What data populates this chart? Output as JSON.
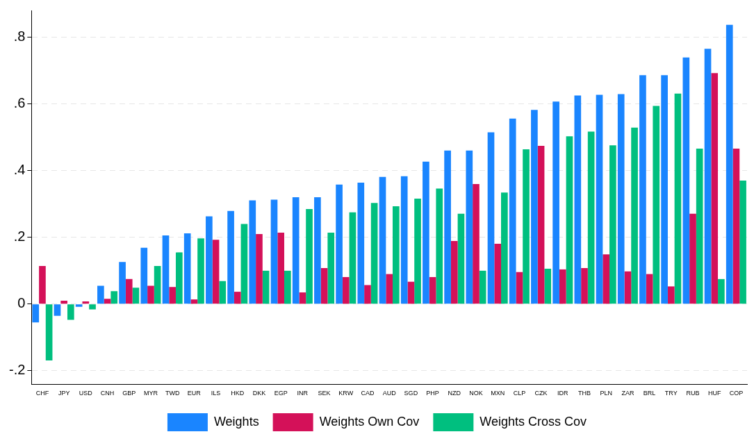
{
  "chart_data": {
    "type": "bar",
    "categories": [
      "CHF",
      "JPY",
      "USD",
      "CNH",
      "GBP",
      "MYR",
      "TWD",
      "EUR",
      "ILS",
      "HKD",
      "DKK",
      "EGP",
      "INR",
      "SEK",
      "KRW",
      "CAD",
      "AUD",
      "SGD",
      "PHP",
      "NZD",
      "NOK",
      "MXN",
      "CLP",
      "CZK",
      "IDR",
      "THB",
      "PLN",
      "ZAR",
      "BRL",
      "TRY",
      "RUB",
      "HUF",
      "COP"
    ],
    "series": [
      {
        "name": "Weights",
        "color": "#1a85ff",
        "values": [
          -0.055,
          -0.035,
          -0.008,
          0.055,
          0.126,
          0.169,
          0.206,
          0.212,
          0.263,
          0.279,
          0.311,
          0.313,
          0.32,
          0.32,
          0.358,
          0.364,
          0.381,
          0.383,
          0.427,
          0.46,
          0.46,
          0.515,
          0.556,
          0.582,
          0.607,
          0.625,
          0.627,
          0.629,
          0.686,
          0.686,
          0.739,
          0.765,
          0.837
        ]
      },
      {
        "name": "Weights Own Cov",
        "color": "#d41159",
        "values": [
          0.114,
          0.01,
          0.008,
          0.016,
          0.075,
          0.055,
          0.051,
          0.014,
          0.193,
          0.037,
          0.21,
          0.214,
          0.035,
          0.108,
          0.081,
          0.057,
          0.09,
          0.067,
          0.081,
          0.189,
          0.36,
          0.181,
          0.096,
          0.474,
          0.104,
          0.108,
          0.149,
          0.098,
          0.09,
          0.053,
          0.271,
          0.692,
          0.466
        ]
      },
      {
        "name": "Weights Cross Cov",
        "color": "#00bf7f",
        "values": [
          -0.169,
          -0.047,
          -0.016,
          0.039,
          0.049,
          0.114,
          0.155,
          0.197,
          0.069,
          0.24,
          0.1,
          0.1,
          0.285,
          0.214,
          0.275,
          0.303,
          0.293,
          0.316,
          0.346,
          0.271,
          0.1,
          0.334,
          0.464,
          0.106,
          0.503,
          0.517,
          0.476,
          0.529,
          0.594,
          0.631,
          0.466,
          0.075,
          0.37
        ]
      }
    ],
    "ylim": [
      -0.24,
      0.88
    ],
    "yticks": [
      {
        "value": -0.2,
        "label": "-.2"
      },
      {
        "value": 0,
        "label": "0"
      },
      {
        "value": 0.2,
        "label": ".2"
      },
      {
        "value": 0.4,
        "label": ".4"
      },
      {
        "value": 0.6,
        "label": ".6"
      },
      {
        "value": 0.8,
        "label": ".8"
      }
    ],
    "grid": "y",
    "legend": "bottom"
  }
}
